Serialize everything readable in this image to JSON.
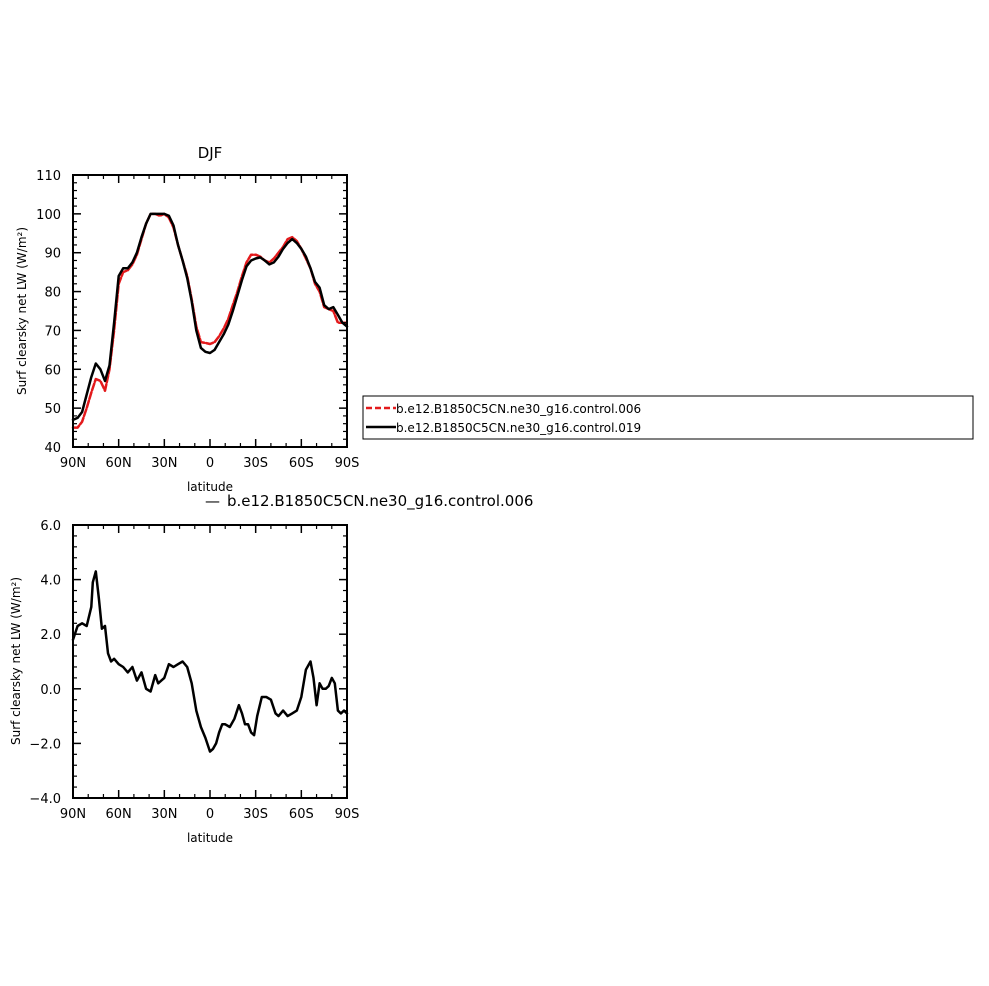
{
  "chart_data": [
    {
      "type": "line",
      "title": "DJF",
      "xlabel": "latitude",
      "ylabel": "Surf clearsky net LW (W/m²)",
      "xlim": [
        -90,
        90
      ],
      "ylim": [
        40,
        110
      ],
      "x_ticks": [
        {
          "value": -90,
          "label": "90N"
        },
        {
          "value": -60,
          "label": "60N"
        },
        {
          "value": -30,
          "label": "30N"
        },
        {
          "value": 0,
          "label": "0"
        },
        {
          "value": 30,
          "label": "30S"
        },
        {
          "value": 60,
          "label": "60S"
        },
        {
          "value": 90,
          "label": "90S"
        }
      ],
      "y_ticks": [
        {
          "value": 40,
          "label": "40"
        },
        {
          "value": 50,
          "label": "50"
        },
        {
          "value": 60,
          "label": "60"
        },
        {
          "value": 70,
          "label": "70"
        },
        {
          "value": 80,
          "label": "80"
        },
        {
          "value": 90,
          "label": "90"
        },
        {
          "value": 100,
          "label": "100"
        },
        {
          "value": 110,
          "label": "110"
        }
      ],
      "grid": false,
      "legend": "right",
      "series": [
        {
          "name": "b.e12.B1850C5CN.ne30_g16.control.006",
          "color": "#e31a1c",
          "dash": "dashed",
          "x": [
            -90,
            -87,
            -84,
            -81,
            -78,
            -75,
            -72,
            -69,
            -66,
            -63,
            -60,
            -57,
            -54,
            -51,
            -48,
            -45,
            -42,
            -39,
            -36,
            -33,
            -30,
            -27,
            -24,
            -21,
            -18,
            -15,
            -12,
            -9,
            -6,
            -3,
            0,
            3,
            6,
            9,
            12,
            15,
            18,
            21,
            24,
            27,
            30,
            33,
            36,
            39,
            42,
            45,
            48,
            51,
            54,
            57,
            60,
            63,
            66,
            69,
            72,
            75,
            78,
            81,
            84,
            87,
            90
          ],
          "values": [
            45.0,
            45.0,
            46.5,
            50.0,
            54.0,
            57.5,
            57.0,
            54.5,
            60.0,
            70.0,
            82.0,
            85.0,
            85.5,
            87.0,
            89.5,
            93.5,
            97.5,
            100.0,
            100.0,
            99.5,
            100.0,
            99.0,
            96.5,
            92.0,
            88.0,
            84.0,
            78.0,
            71.0,
            67.0,
            66.8,
            66.5,
            67.0,
            68.5,
            70.5,
            73.0,
            76.5,
            80.0,
            84.0,
            87.5,
            89.5,
            89.5,
            89.0,
            88.0,
            87.5,
            88.5,
            90.0,
            91.5,
            93.5,
            94.0,
            93.0,
            91.0,
            88.5,
            86.0,
            82.0,
            80.0,
            76.0,
            75.5,
            75.0,
            72.0,
            72.0,
            72.0
          ]
        },
        {
          "name": "b.e12.B1850C5CN.ne30_g16.control.019",
          "color": "#000000",
          "dash": "solid",
          "x": [
            -90,
            -87,
            -84,
            -81,
            -78,
            -75,
            -72,
            -69,
            -66,
            -63,
            -60,
            -57,
            -54,
            -51,
            -48,
            -45,
            -42,
            -39,
            -36,
            -33,
            -30,
            -27,
            -24,
            -21,
            -18,
            -15,
            -12,
            -9,
            -6,
            -3,
            0,
            3,
            6,
            9,
            12,
            15,
            18,
            21,
            24,
            27,
            30,
            33,
            36,
            39,
            42,
            45,
            48,
            51,
            54,
            57,
            60,
            63,
            66,
            69,
            72,
            75,
            78,
            81,
            84,
            87,
            90
          ],
          "values": [
            47.0,
            47.5,
            49.0,
            53.5,
            58.0,
            61.5,
            60.0,
            57.0,
            61.0,
            72.0,
            84.0,
            86.0,
            86.0,
            87.5,
            90.0,
            94.0,
            97.5,
            100.0,
            100.0,
            100.0,
            100.0,
            99.5,
            97.0,
            92.0,
            88.0,
            83.5,
            77.5,
            70.0,
            65.5,
            64.5,
            64.2,
            65.0,
            67.0,
            69.0,
            71.5,
            75.0,
            79.0,
            83.0,
            86.5,
            88.0,
            88.5,
            88.8,
            88.0,
            87.0,
            87.5,
            89.0,
            91.0,
            92.5,
            93.5,
            92.5,
            91.0,
            89.0,
            86.0,
            82.5,
            81.0,
            76.5,
            75.5,
            76.0,
            74.0,
            72.0,
            71.0
          ]
        }
      ]
    },
    {
      "type": "line",
      "title": "b.e12.B1850C5CN.ne30_g16.control.006",
      "title_prefix": "—",
      "xlabel": "latitude",
      "ylabel": "Surf clearsky net LW (W/m²)",
      "xlim": [
        -90,
        90
      ],
      "ylim": [
        -4.0,
        6.0
      ],
      "x_ticks": [
        {
          "value": -90,
          "label": "90N"
        },
        {
          "value": -60,
          "label": "60N"
        },
        {
          "value": -30,
          "label": "30N"
        },
        {
          "value": 0,
          "label": "0"
        },
        {
          "value": 30,
          "label": "30S"
        },
        {
          "value": 60,
          "label": "60S"
        },
        {
          "value": 90,
          "label": "90S"
        }
      ],
      "y_ticks": [
        {
          "value": -4.0,
          "label": "−4.0"
        },
        {
          "value": -2.0,
          "label": "−2.0"
        },
        {
          "value": 0.0,
          "label": "0.0"
        },
        {
          "value": 2.0,
          "label": "2.0"
        },
        {
          "value": 4.0,
          "label": "4.0"
        },
        {
          "value": 6.0,
          "label": "6.0"
        }
      ],
      "grid": false,
      "series": [
        {
          "color": "#000000",
          "dash": "solid",
          "x": [
            -90,
            -87,
            -84,
            -81,
            -78,
            -77,
            -75,
            -73,
            -71,
            -69,
            -67,
            -65,
            -63,
            -60,
            -57,
            -54,
            -51,
            -48,
            -45,
            -42,
            -39,
            -36,
            -34,
            -32,
            -30,
            -27,
            -24,
            -21,
            -18,
            -15,
            -12,
            -9,
            -6,
            -3,
            0,
            2,
            4,
            6,
            8,
            10,
            13,
            16,
            19,
            21,
            23,
            25,
            27,
            29,
            31,
            34,
            37,
            40,
            43,
            45,
            48,
            51,
            54,
            57,
            60,
            63,
            66,
            68,
            70,
            72,
            74,
            76,
            78,
            80,
            82,
            84,
            86,
            88,
            90
          ],
          "values": [
            1.8,
            2.3,
            2.4,
            2.3,
            3.0,
            3.9,
            4.3,
            3.3,
            2.2,
            2.3,
            1.3,
            1.0,
            1.1,
            0.9,
            0.8,
            0.6,
            0.8,
            0.3,
            0.6,
            0.0,
            -0.1,
            0.5,
            0.2,
            0.3,
            0.4,
            0.9,
            0.8,
            0.9,
            1.0,
            0.8,
            0.2,
            -0.8,
            -1.4,
            -1.8,
            -2.3,
            -2.2,
            -2.0,
            -1.6,
            -1.3,
            -1.3,
            -1.4,
            -1.1,
            -0.6,
            -0.9,
            -1.3,
            -1.3,
            -1.6,
            -1.7,
            -1.0,
            -0.3,
            -0.3,
            -0.4,
            -0.9,
            -1.0,
            -0.8,
            -1.0,
            -0.9,
            -0.8,
            -0.3,
            0.7,
            1.0,
            0.4,
            -0.6,
            0.2,
            0.0,
            0.0,
            0.1,
            0.4,
            0.2,
            -0.8,
            -0.9,
            -0.8,
            -0.9
          ]
        }
      ]
    }
  ]
}
